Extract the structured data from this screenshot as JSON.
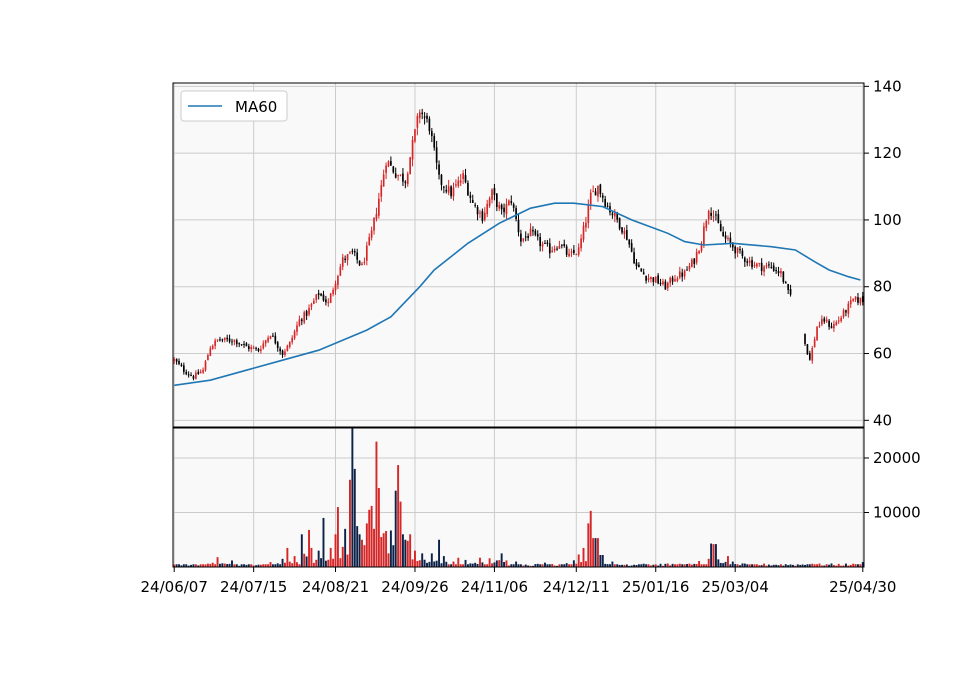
{
  "chart_data": [
    {
      "type": "candlestick",
      "panel": "price",
      "yaxis_side": "right",
      "ylim": [
        38,
        141
      ],
      "yticks": [
        40,
        60,
        80,
        100,
        120,
        140
      ],
      "grid": true,
      "legend": {
        "placement": "top-left",
        "entries": [
          "MA60"
        ]
      },
      "colors": {
        "up": "#d62728",
        "down": "#000000",
        "ma": "#1f77b4",
        "panel_bg": "#f9f9f9",
        "grid": "#cccccc"
      },
      "close_anchors": [
        [
          0,
          58
        ],
        [
          4,
          55
        ],
        [
          8,
          53
        ],
        [
          12,
          55
        ],
        [
          15,
          62
        ],
        [
          18,
          64
        ],
        [
          25,
          64
        ],
        [
          30,
          62
        ],
        [
          35,
          61
        ],
        [
          40,
          66
        ],
        [
          45,
          60
        ],
        [
          48,
          63
        ],
        [
          52,
          70
        ],
        [
          55,
          72
        ],
        [
          60,
          78
        ],
        [
          64,
          75
        ],
        [
          67,
          82
        ],
        [
          70,
          88
        ],
        [
          74,
          90
        ],
        [
          78,
          86
        ],
        [
          82,
          96
        ],
        [
          86,
          110
        ],
        [
          88,
          118
        ],
        [
          92,
          114
        ],
        [
          96,
          112
        ],
        [
          100,
          126
        ],
        [
          102,
          133
        ],
        [
          106,
          128
        ],
        [
          110,
          112
        ],
        [
          115,
          108
        ],
        [
          120,
          113
        ],
        [
          124,
          105
        ],
        [
          128,
          101
        ],
        [
          132,
          108
        ],
        [
          136,
          102
        ],
        [
          140,
          106
        ],
        [
          144,
          94
        ],
        [
          148,
          96
        ],
        [
          152,
          93
        ],
        [
          156,
          91
        ],
        [
          160,
          93
        ],
        [
          164,
          89
        ],
        [
          168,
          91
        ],
        [
          171,
          100
        ],
        [
          173,
          107
        ],
        [
          176,
          110
        ],
        [
          180,
          104
        ],
        [
          184,
          100
        ],
        [
          188,
          95
        ],
        [
          192,
          86
        ],
        [
          196,
          83
        ],
        [
          200,
          82
        ],
        [
          204,
          80
        ],
        [
          208,
          83
        ],
        [
          212,
          84
        ],
        [
          216,
          88
        ],
        [
          219,
          94
        ],
        [
          222,
          104
        ],
        [
          225,
          100
        ],
        [
          228,
          95
        ],
        [
          232,
          92
        ],
        [
          236,
          89
        ],
        [
          240,
          87
        ],
        [
          244,
          86
        ],
        [
          248,
          86
        ],
        [
          252,
          84
        ],
        [
          255,
          78
        ],
        [
          258,
          76
        ],
        [
          262,
          63
        ],
        [
          264,
          58
        ],
        [
          267,
          68
        ],
        [
          270,
          70
        ],
        [
          273,
          68
        ],
        [
          276,
          70
        ],
        [
          279,
          73
        ],
        [
          282,
          76
        ]
      ],
      "gap_ranges": [
        [
          257,
          261
        ]
      ],
      "ma60": {
        "name": "MA60",
        "points": [
          [
            0,
            50.5
          ],
          [
            15,
            52
          ],
          [
            30,
            55
          ],
          [
            45,
            58
          ],
          [
            60,
            61
          ],
          [
            80,
            67
          ],
          [
            90,
            71
          ],
          [
            102,
            80
          ],
          [
            108,
            85
          ],
          [
            122,
            93
          ],
          [
            135,
            99
          ],
          [
            148,
            103.5
          ],
          [
            158,
            105
          ],
          [
            166,
            105
          ],
          [
            178,
            104
          ],
          [
            190,
            100
          ],
          [
            205,
            96
          ],
          [
            212,
            93.5
          ],
          [
            220,
            92.5
          ],
          [
            232,
            93
          ],
          [
            248,
            92
          ],
          [
            258,
            91
          ],
          [
            266,
            87.5
          ],
          [
            272,
            85
          ],
          [
            280,
            83
          ],
          [
            285,
            82
          ]
        ]
      }
    },
    {
      "type": "bar",
      "panel": "volume",
      "yaxis_side": "right",
      "ylim": [
        0,
        25500
      ],
      "yticks": [
        10000,
        20000
      ],
      "grid": true,
      "colors": {
        "up": "#d62728",
        "down": "#0d2248"
      },
      "base_volume": 500,
      "spikes": [
        [
          3,
          300
        ],
        [
          10,
          300
        ],
        [
          18,
          1800
        ],
        [
          24,
          1200
        ],
        [
          30,
          400
        ],
        [
          40,
          900
        ],
        [
          45,
          1500
        ],
        [
          47,
          3500
        ],
        [
          50,
          2000
        ],
        [
          53,
          6000
        ],
        [
          56,
          6800
        ],
        [
          60,
          3000
        ],
        [
          62,
          9000
        ],
        [
          65,
          3500
        ],
        [
          67,
          6000
        ],
        [
          68,
          11000
        ],
        [
          71,
          7000
        ],
        [
          73,
          16000
        ],
        [
          74,
          25500
        ],
        [
          75,
          18000
        ],
        [
          76,
          7500
        ],
        [
          77,
          6000
        ],
        [
          78,
          5000
        ],
        [
          79,
          4000
        ],
        [
          80,
          8000
        ],
        [
          81,
          10500
        ],
        [
          82,
          11200
        ],
        [
          83,
          7000
        ],
        [
          84,
          23000
        ],
        [
          85,
          14500
        ],
        [
          86,
          5500
        ],
        [
          87,
          6200
        ],
        [
          88,
          6600
        ],
        [
          89,
          2500
        ],
        [
          90,
          6700
        ],
        [
          91,
          4000
        ],
        [
          92,
          14000
        ],
        [
          93,
          18700
        ],
        [
          94,
          12000
        ],
        [
          95,
          6000
        ],
        [
          96,
          5000
        ],
        [
          97,
          4800
        ],
        [
          98,
          6000
        ],
        [
          100,
          3000
        ],
        [
          103,
          2500
        ],
        [
          107,
          2500
        ],
        [
          110,
          5000
        ],
        [
          112,
          2000
        ],
        [
          116,
          1000
        ],
        [
          118,
          1700
        ],
        [
          121,
          1300
        ],
        [
          127,
          1700
        ],
        [
          131,
          1600
        ],
        [
          136,
          2500
        ],
        [
          142,
          1000
        ],
        [
          154,
          800
        ],
        [
          163,
          700
        ],
        [
          168,
          2300
        ],
        [
          170,
          3500
        ],
        [
          172,
          8000
        ],
        [
          173,
          10300
        ],
        [
          174,
          5300
        ],
        [
          175,
          5300
        ],
        [
          176,
          5300
        ],
        [
          177,
          2200
        ],
        [
          178,
          2200
        ],
        [
          182,
          1000
        ],
        [
          195,
          600
        ],
        [
          210,
          600
        ],
        [
          218,
          1100
        ],
        [
          222,
          1500
        ],
        [
          223,
          4300
        ],
        [
          224,
          4200
        ],
        [
          225,
          4200
        ],
        [
          226,
          1400
        ],
        [
          230,
          2000
        ],
        [
          232,
          1000
        ],
        [
          240,
          500
        ],
        [
          265,
          600
        ],
        [
          286,
          900
        ]
      ]
    }
  ],
  "x_axis": {
    "n_bars": 287,
    "ticks": [
      {
        "label": "24/06/07",
        "index": 0
      },
      {
        "label": "24/07/15",
        "index": 33
      },
      {
        "label": "24/08/21",
        "index": 67
      },
      {
        "label": "24/09/26",
        "index": 100
      },
      {
        "label": "24/11/06",
        "index": 133
      },
      {
        "label": "24/12/11",
        "index": 167
      },
      {
        "label": "25/01/16",
        "index": 200
      },
      {
        "label": "25/03/04",
        "index": 233
      },
      {
        "label": "25/04/30",
        "index": 286
      }
    ]
  }
}
